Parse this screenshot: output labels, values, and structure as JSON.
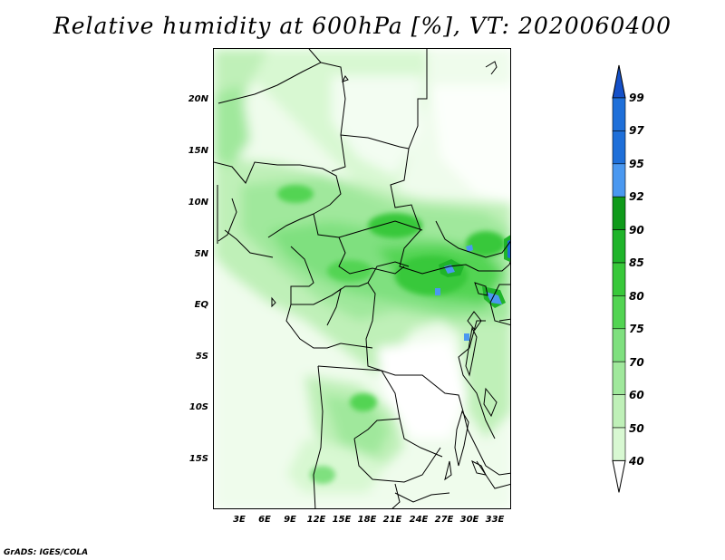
{
  "title": "Relative humidity at 600hPa [%], VT: 2020060400",
  "credit": "GrADS: IGES/COLA",
  "map": {
    "lon_range": [
      0,
      35
    ],
    "lat_range": [
      -20,
      24
    ],
    "lat_ticks": [
      "20N",
      "15N",
      "10N",
      "5N",
      "EQ",
      "5S",
      "10S",
      "15S"
    ],
    "lon_ticks": [
      "3E",
      "6E",
      "9E",
      "12E",
      "15E",
      "18E",
      "21E",
      "24E",
      "27E",
      "30E",
      "33E"
    ]
  },
  "colorbar": {
    "levels": [
      "99",
      "97",
      "95",
      "92",
      "90",
      "85",
      "80",
      "75",
      "70",
      "60",
      "50",
      "40"
    ],
    "colors": [
      "#1e6fd9",
      "#1e6fd9",
      "#4a98f0",
      "#0f9a1a",
      "#1fb42a",
      "#38c83a",
      "#52d452",
      "#7fe07f",
      "#a0e89c",
      "#bff0b8",
      "#d8f8d2",
      "#effcec"
    ],
    "top_arrow_color": "#1450c8",
    "bottom_arrow_color": "#ffffff"
  }
}
